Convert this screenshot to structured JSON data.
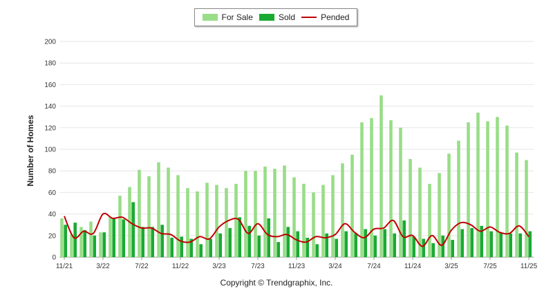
{
  "chart_data": {
    "type": "bar",
    "ylabel": "Number of Homes",
    "ylim": [
      0,
      200
    ],
    "yticks": [
      0,
      20,
      40,
      60,
      80,
      100,
      120,
      140,
      160,
      180,
      200
    ],
    "xtick_labels": [
      "11/21",
      "3/22",
      "7/22",
      "11/22",
      "3/23",
      "7/23",
      "11/23",
      "3/24",
      "7/24",
      "11/24",
      "3/25",
      "7/25",
      "11/25"
    ],
    "months": [
      "11/21",
      "12/21",
      "1/22",
      "2/22",
      "3/22",
      "4/22",
      "5/22",
      "6/22",
      "7/22",
      "8/22",
      "9/22",
      "10/22",
      "11/22",
      "12/22",
      "1/23",
      "2/23",
      "3/23",
      "4/23",
      "5/23",
      "6/23",
      "7/23",
      "8/23",
      "9/23",
      "10/23",
      "11/23",
      "12/23",
      "1/24",
      "2/24",
      "3/24",
      "4/24",
      "5/24",
      "6/24",
      "7/24",
      "8/24",
      "9/24",
      "10/24",
      "11/24",
      "12/24",
      "1/25",
      "2/25",
      "3/25",
      "4/25",
      "5/25",
      "6/25",
      "7/25",
      "8/25",
      "9/25",
      "10/25",
      "11/25"
    ],
    "series": [
      {
        "name": "For Sale",
        "color": "#99dd88",
        "values": [
          36,
          21,
          28,
          33,
          23,
          37,
          57,
          65,
          81,
          75,
          88,
          83,
          76,
          64,
          61,
          69,
          67,
          64,
          68,
          80,
          80,
          84,
          82,
          85,
          74,
          68,
          60,
          67,
          76,
          87,
          95,
          125,
          129,
          150,
          127,
          120,
          91,
          83,
          68,
          78,
          96,
          108,
          125,
          134,
          126,
          130,
          122,
          97,
          90
        ]
      },
      {
        "name": "Sold",
        "color": "#1aaa33",
        "values": [
          30,
          32,
          25,
          20,
          23,
          36,
          35,
          51,
          28,
          28,
          30,
          18,
          19,
          17,
          12,
          17,
          22,
          27,
          37,
          29,
          20,
          36,
          14,
          28,
          24,
          18,
          12,
          22,
          17,
          24,
          22,
          26,
          20,
          26,
          22,
          34,
          19,
          17,
          13,
          20,
          16,
          26,
          27,
          29,
          24,
          23,
          22,
          22,
          24
        ]
      },
      {
        "name": "Pended",
        "color": "#c00000",
        "values": [
          38,
          18,
          24,
          22,
          40,
          36,
          37,
          31,
          27,
          27,
          22,
          21,
          15,
          14,
          19,
          17,
          28,
          34,
          35,
          22,
          31,
          21,
          19,
          21,
          16,
          14,
          19,
          18,
          21,
          31,
          23,
          18,
          26,
          27,
          34,
          19,
          20,
          10,
          20,
          11,
          25,
          32,
          30,
          24,
          28,
          23,
          22,
          29,
          19
        ]
      }
    ],
    "legend": [
      {
        "label": "For Sale",
        "color": "#99dd88",
        "kind": "bar"
      },
      {
        "label": "Sold",
        "color": "#1aaa33",
        "kind": "bar"
      },
      {
        "label": "Pended",
        "color": "#c00000",
        "kind": "line"
      }
    ],
    "legend_position": "top-center",
    "grid": true
  },
  "footer": {
    "copyright": "Copyright © Trendgraphix, Inc."
  }
}
